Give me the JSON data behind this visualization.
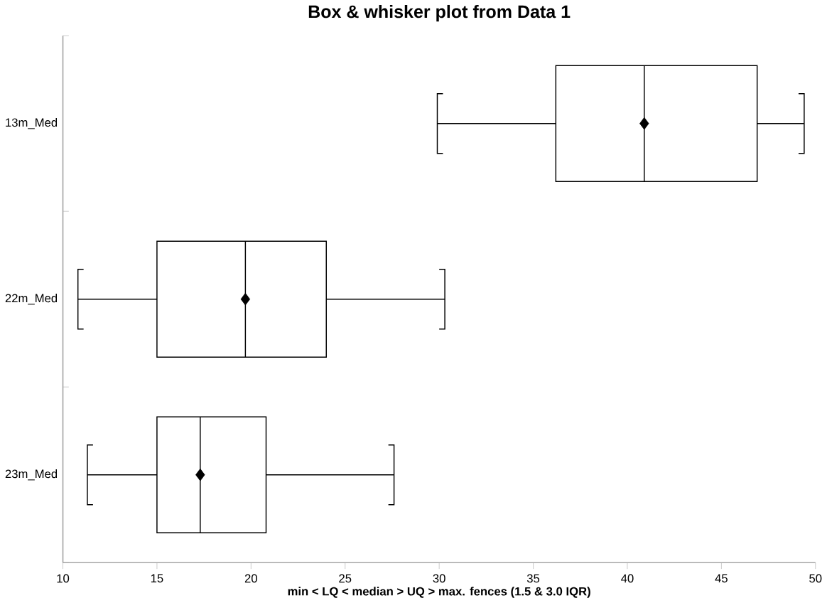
{
  "chart_data": {
    "type": "box",
    "orientation": "horizontal",
    "title": "Box & whisker plot from Data 1",
    "xlabel": "min < LQ < median > UQ > max. fences (1.5 & 3.0 IQR)",
    "categories": [
      "13m_Med",
      "22m_Med",
      "23m_Med"
    ],
    "boxes": [
      {
        "low": 29.9,
        "q1": 36.2,
        "median": 40.9,
        "q3": 46.9,
        "high": 49.4,
        "mean": 40.9
      },
      {
        "low": 10.8,
        "q1": 15.0,
        "median": 19.7,
        "q3": 24.0,
        "high": 30.3,
        "mean": 19.7
      },
      {
        "low": 11.3,
        "q1": 15.0,
        "median": 17.3,
        "q3": 20.8,
        "high": 27.6,
        "mean": 17.3
      }
    ],
    "xlim": [
      10,
      50
    ],
    "xticks": [
      10,
      15,
      20,
      25,
      30,
      35,
      40,
      45,
      50
    ],
    "marker": "diamond",
    "grid": false
  }
}
